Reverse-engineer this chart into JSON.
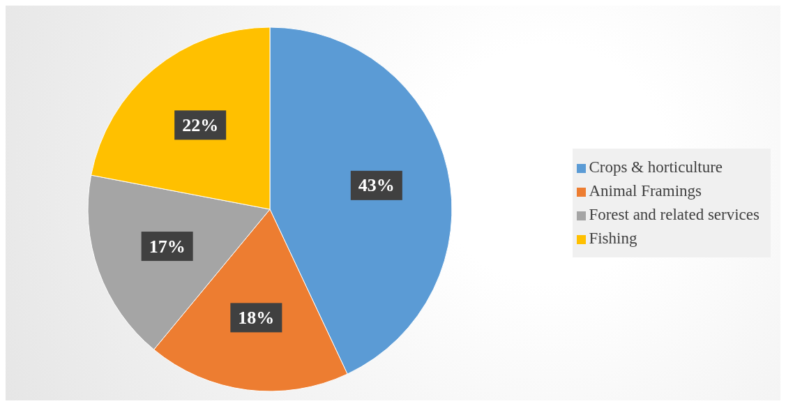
{
  "chart_data": {
    "type": "pie",
    "categories": [
      "Crops & horticulture",
      "Animal Framings",
      "Forest and related services",
      "Fishing"
    ],
    "values": [
      43,
      18,
      17,
      22
    ],
    "value_labels": [
      "43%",
      "18%",
      "17%",
      "22%"
    ],
    "colors": [
      "#5b9bd5",
      "#ed7d31",
      "#a5a5a5",
      "#ffc000"
    ],
    "legend": "right"
  }
}
